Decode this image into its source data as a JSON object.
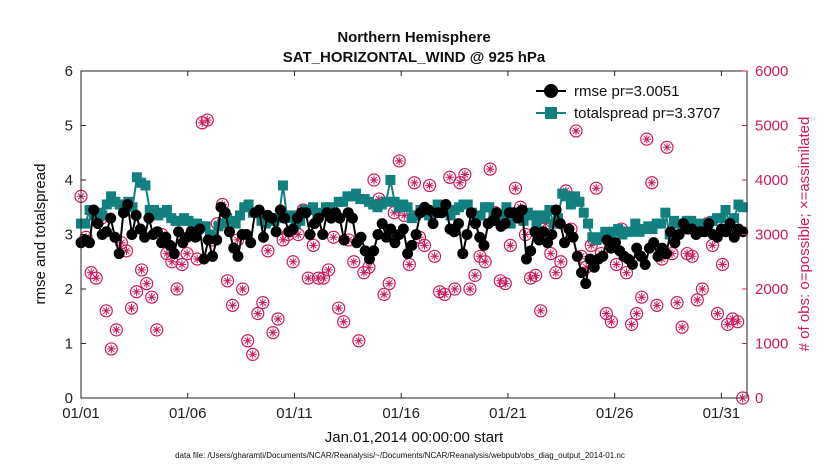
{
  "chart_data": {
    "type": "line",
    "title": "Northern Hemisphere",
    "subtitle": "SAT_HORIZONTAL_WIND @ 925 hPa",
    "xlabel": "Jan.01,2014 00:00:00 start",
    "ylabel": "rmse and totalspread",
    "y2label": "# of obs: o=possible; ×=assimilated",
    "footnote": "data file: /Users/gharamti/Documents/NCAR/Reanalysis/~/Documents/NCAR/Reanalysis/webpub/obs_diag_output_2014-01.nc",
    "x_ticks": [
      {
        "label": "01/01",
        "day": 1
      },
      {
        "label": "01/06",
        "day": 6
      },
      {
        "label": "01/11",
        "day": 11
      },
      {
        "label": "01/16",
        "day": 16
      },
      {
        "label": "01/21",
        "day": 21
      },
      {
        "label": "01/26",
        "day": 26
      },
      {
        "label": "01/31",
        "day": 31
      }
    ],
    "xlim_days": [
      1,
      32.2
    ],
    "ylim": [
      0,
      6
    ],
    "yticks": [
      "0",
      "1",
      "2",
      "3",
      "4",
      "5",
      "6"
    ],
    "y2lim": [
      0,
      6000
    ],
    "y2ticks": [
      "0",
      "1000",
      "2000",
      "3000",
      "4000",
      "5000",
      "6000"
    ],
    "legend_position": "top-right",
    "colors": {
      "rmse": "#000000",
      "totalspread": "#12807f",
      "obs": "#cc1a5e",
      "axis": "#222222"
    },
    "series": [
      {
        "name": "rmse pr=3.0051",
        "marker": "circle",
        "values": [
          2.85,
          2.9,
          2.85,
          3.45,
          3.2,
          3.0,
          3.05,
          3.3,
          2.95,
          2.65,
          3.4,
          3.55,
          3.0,
          3.35,
          3.1,
          2.95,
          3.3,
          3.0,
          3.05,
          2.85,
          2.95,
          2.8,
          2.65,
          3.05,
          2.85,
          2.95,
          3.05,
          2.95,
          3.1,
          2.55,
          2.9,
          2.6,
          2.9,
          3.5,
          3.4,
          3.05,
          2.75,
          2.6,
          3.0,
          3.0,
          2.85,
          3.4,
          3.45,
          2.95,
          3.35,
          3.3,
          3.05,
          3.45,
          3.3,
          3.05,
          3.1,
          3.3,
          3.4,
          3.4,
          3.0,
          3.2,
          3.3,
          3.0,
          3.4,
          3.3,
          3.4,
          3.3,
          2.9,
          3.4,
          3.3,
          2.85,
          2.95,
          2.7,
          2.55,
          2.7,
          3.0,
          3.2,
          2.95,
          3.1,
          2.85,
          3.0,
          3.1,
          2.65,
          2.8,
          3.0,
          3.4,
          3.5,
          3.45,
          3.2,
          3.4,
          3.4,
          3.55,
          3.1,
          3.05,
          3.2,
          2.65,
          3.0,
          3.4,
          3.2,
          2.95,
          2.8,
          3.2,
          3.25,
          3.4,
          3.15,
          3.2,
          3.4,
          3.4,
          3.3,
          3.45,
          2.55,
          2.7,
          3.05,
          2.9,
          3.05,
          2.85,
          3.0,
          3.45,
          3.2,
          2.85,
          3.1,
          2.95,
          2.6,
          2.3,
          2.1,
          2.55,
          2.4,
          2.55,
          2.6,
          2.9,
          2.75,
          2.85,
          2.7,
          2.6,
          2.55,
          2.45,
          2.75,
          2.6,
          2.45,
          2.75,
          2.85,
          2.6,
          2.75,
          2.65,
          3.05,
          2.85,
          3.0,
          3.2,
          3.1,
          3.1,
          3.0,
          3.05,
          3.05,
          3.2,
          3.0,
          2.95,
          3.1,
          3.05,
          3.2,
          2.95,
          3.1,
          3.05
        ]
      },
      {
        "name": "totalspread pr=3.3707",
        "marker": "square",
        "values": [
          3.2,
          3.2,
          3.45,
          3.35,
          3.4,
          3.35,
          3.55,
          3.7,
          3.6,
          3.55,
          3.55,
          3.6,
          3.5,
          4.05,
          3.95,
          3.9,
          3.45,
          3.45,
          3.35,
          3.4,
          3.45,
          3.3,
          3.25,
          3.25,
          3.3,
          3.25,
          3.2,
          3.2,
          3.15,
          3.15,
          3.0,
          2.95,
          3.15,
          3.2,
          3.3,
          3.25,
          3.2,
          3.35,
          3.5,
          3.55,
          3.4,
          3.4,
          3.25,
          3.2,
          3.25,
          3.25,
          3.3,
          3.9,
          3.3,
          3.35,
          3.2,
          3.25,
          3.45,
          3.45,
          3.5,
          3.3,
          3.4,
          3.5,
          3.5,
          3.35,
          3.6,
          3.6,
          3.7,
          3.7,
          3.75,
          3.65,
          3.65,
          3.6,
          3.55,
          3.5,
          3.55,
          3.6,
          4.0,
          3.6,
          3.5,
          3.55,
          3.5,
          3.3,
          3.35,
          3.45,
          3.45,
          3.35,
          3.4,
          3.55,
          3.45,
          3.5,
          3.35,
          3.45,
          3.5,
          3.55,
          3.55,
          3.4,
          3.3,
          3.35,
          3.5,
          3.5,
          3.4,
          3.25,
          3.35,
          3.5,
          3.2,
          3.35,
          3.4,
          3.25,
          3.4,
          3.35,
          3.2,
          3.35,
          3.3,
          3.45,
          3.2,
          3.3,
          3.75,
          3.7,
          3.55,
          3.7,
          3.6,
          3.4,
          3.2,
          2.95,
          2.9,
          2.95,
          3.05,
          3.0,
          3.05,
          3.1,
          3.0,
          3.05,
          3.05,
          3.2,
          3.05,
          3.1,
          3.15,
          3.1,
          3.2,
          3.2,
          3.4,
          3.0,
          3.25,
          3.2,
          3.1,
          3.25,
          3.25,
          3.2,
          3.15,
          3.2,
          3.1,
          3.25,
          3.3,
          3.3,
          3.45,
          3.2,
          3.3,
          3.55,
          3.5
        ]
      },
      {
        "name": "possible",
        "marker": "circle-open",
        "axis": "right",
        "values": [
          3700,
          2950,
          2300,
          2200,
          3300,
          1600,
          900,
          1250,
          2850,
          2700,
          1650,
          1950,
          2350,
          2100,
          1850,
          1250,
          3000,
          2650,
          2500,
          2000,
          2450,
          2650,
          3050,
          2550,
          5050,
          5100,
          2900,
          3200,
          3550,
          2150,
          1700,
          2900,
          2000,
          1050,
          800,
          1550,
          1750,
          2700,
          1200,
          1450,
          2900,
          3000,
          2500,
          3000,
          3450,
          2200,
          2800,
          2200,
          2200,
          2350,
          2950,
          1650,
          1400,
          2900,
          2500,
          1050,
          2300,
          2400,
          4000,
          3650,
          1900,
          2100,
          3400,
          4350,
          3350,
          2450,
          3950,
          2950,
          2800,
          3900,
          2600,
          1950,
          1900,
          4050,
          2000,
          3950,
          4100,
          2000,
          2250,
          2600,
          2500,
          4200,
          3400,
          2150,
          2100,
          2800,
          3850,
          3500,
          3000,
          2200,
          2250,
          1600,
          3200,
          2650,
          2300,
          2500,
          3800,
          3100,
          4900,
          2600,
          2400,
          2800,
          3850,
          2650,
          1550,
          1400,
          2450,
          3100,
          2300,
          1350,
          1550,
          1850,
          4750,
          3950,
          1700,
          2550,
          4600,
          2650,
          1750,
          1300,
          2650,
          2600,
          1800,
          2000,
          3200,
          2800,
          1550,
          2450,
          1350,
          1450,
          1400,
          0
        ]
      },
      {
        "name": "assimilated",
        "marker": "asterisk",
        "axis": "right",
        "values": [
          3700,
          2950,
          2300,
          2200,
          3300,
          1600,
          900,
          1250,
          2850,
          2700,
          1650,
          1950,
          2350,
          2100,
          1850,
          1250,
          3000,
          2650,
          2500,
          2000,
          2450,
          2650,
          3050,
          2550,
          5050,
          5100,
          2900,
          3200,
          3550,
          2150,
          1700,
          2900,
          2000,
          1050,
          800,
          1550,
          1750,
          2700,
          1200,
          1450,
          2900,
          3000,
          2500,
          3000,
          3450,
          2200,
          2800,
          2200,
          2200,
          2350,
          2950,
          1650,
          1400,
          2900,
          2500,
          1050,
          2300,
          2400,
          4000,
          3650,
          1900,
          2100,
          3400,
          4350,
          3350,
          2450,
          3950,
          2950,
          2800,
          3900,
          2600,
          1950,
          1900,
          4050,
          2000,
          3950,
          4100,
          2000,
          2250,
          2600,
          2500,
          4200,
          3400,
          2150,
          2100,
          2800,
          3850,
          3500,
          3000,
          2200,
          2250,
          1600,
          3200,
          2650,
          2300,
          2500,
          3800,
          3100,
          4900,
          2600,
          2400,
          2800,
          3850,
          2650,
          1550,
          1400,
          2450,
          3100,
          2300,
          1350,
          1550,
          1850,
          4750,
          3950,
          1700,
          2550,
          4600,
          2650,
          1750,
          1300,
          2650,
          2600,
          1800,
          2000,
          3200,
          2800,
          1550,
          2450,
          1350,
          1450,
          1400,
          0
        ]
      }
    ]
  }
}
